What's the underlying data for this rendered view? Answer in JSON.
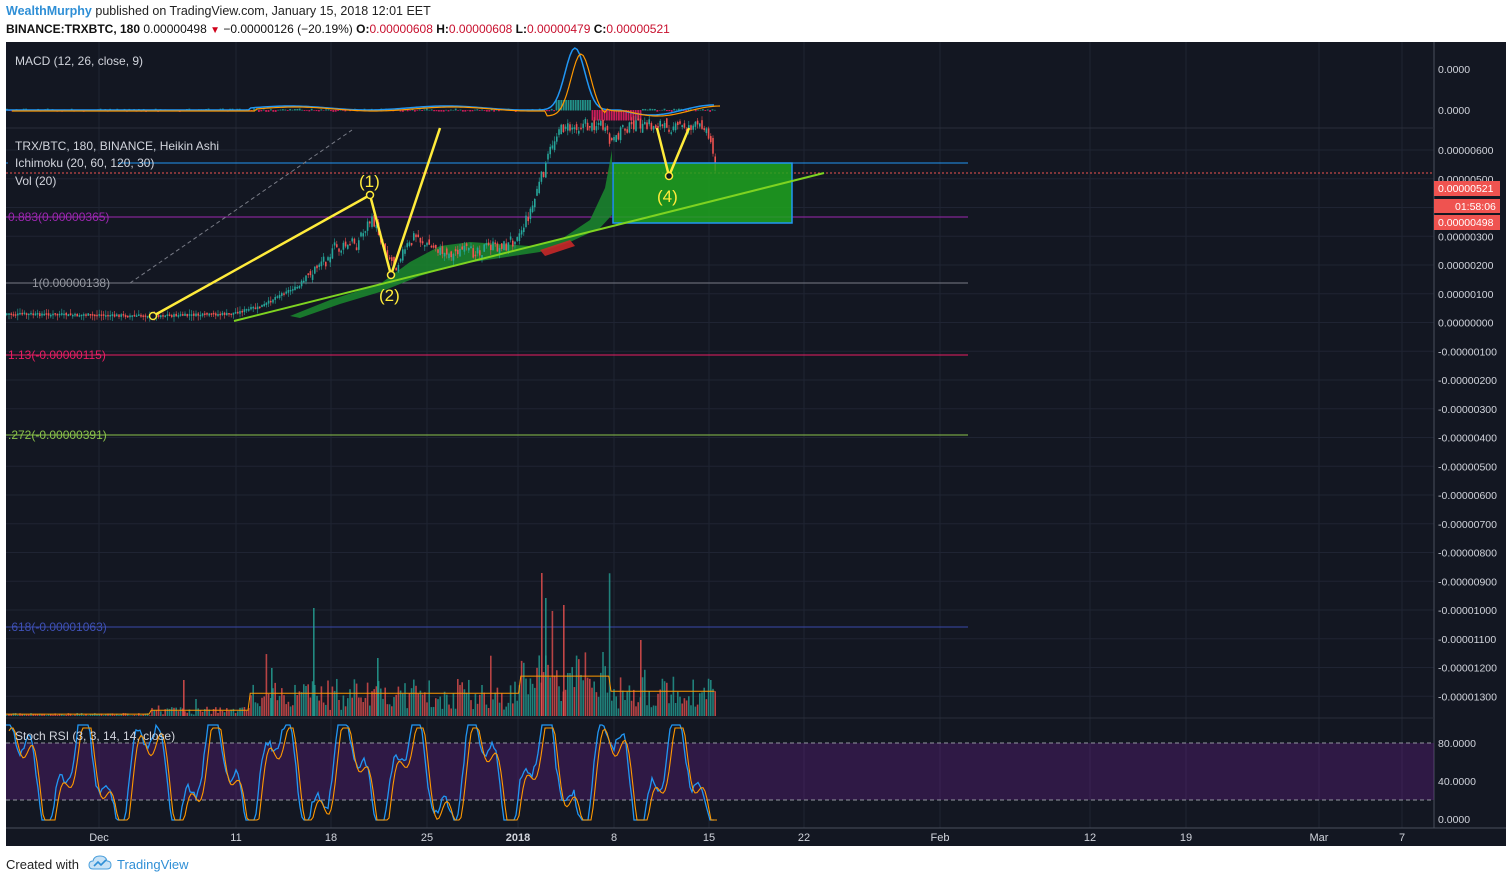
{
  "header": {
    "author": "WealthMurphy",
    "published_text": "published on TradingView.com, January 15, 2018 12:01 EET",
    "symbol": "BINANCE:TRXBTC, 180",
    "last": "0.00000498",
    "change": "−0.00000126 (−20.19%)",
    "o_label": "O:",
    "o_value": "0.00000608",
    "h_label": "H:",
    "h_value": "0.00000608",
    "l_label": "L:",
    "l_value": "0.00000479",
    "c_label": "C:",
    "c_value": "0.00000521"
  },
  "panes": {
    "macd": {
      "legend": "MACD (12, 26, close, 9)",
      "axis_labels": [
        "0.0000",
        "0.0000"
      ]
    },
    "main": {
      "legend_title": "TRX/BTC, 180, BINANCE, Heikin Ashi",
      "ichimoku": "Ichimoku (20, 60, 120, 30)",
      "vol": "Vol (20)",
      "fib_labels": [
        "0.883(0.00000365)",
        "1(0.00000138)",
        "1.13(-0.00000115)",
        ".272(-0.00000391)",
        ".618(-0.00001063)"
      ],
      "wave_labels": [
        "(1)",
        "(2)",
        "(4)"
      ],
      "price_ticks": [
        "0.00000600",
        "0.00000500",
        "0.00000400",
        "0.00000300",
        "0.00000200",
        "0.00000100",
        "0.00000000",
        "-0.00000100",
        "-0.00000200",
        "-0.00000300",
        "-0.00000400",
        "-0.00000500",
        "-0.00000600",
        "-0.00000700",
        "-0.00000800",
        "-0.00000900",
        "-0.00001000",
        "-0.00001100",
        "-0.00001200",
        "-0.00001300"
      ],
      "current_price_tag": "0.00000521",
      "countdown_tag": "01:58:06",
      "last_price_tag": "0.00000498",
      "colors": {
        "up": "#26a69a",
        "down": "#ef5350",
        "wave": "#ffeb3b",
        "trend": "#7ed321",
        "zone": "#1fa41f"
      }
    },
    "stoch": {
      "legend": "Stoch RSI (3, 3, 14, 14, close)",
      "axis_labels": [
        "80.0000",
        "40.0000",
        "0.0000"
      ]
    }
  },
  "time_axis": [
    "Dec",
    "11",
    "18",
    "25",
    "2018",
    "8",
    "15",
    "22",
    "Feb",
    "12",
    "19",
    "Mar",
    "7"
  ],
  "footer": {
    "created_with": "Created with",
    "brand": "TradingView"
  }
}
